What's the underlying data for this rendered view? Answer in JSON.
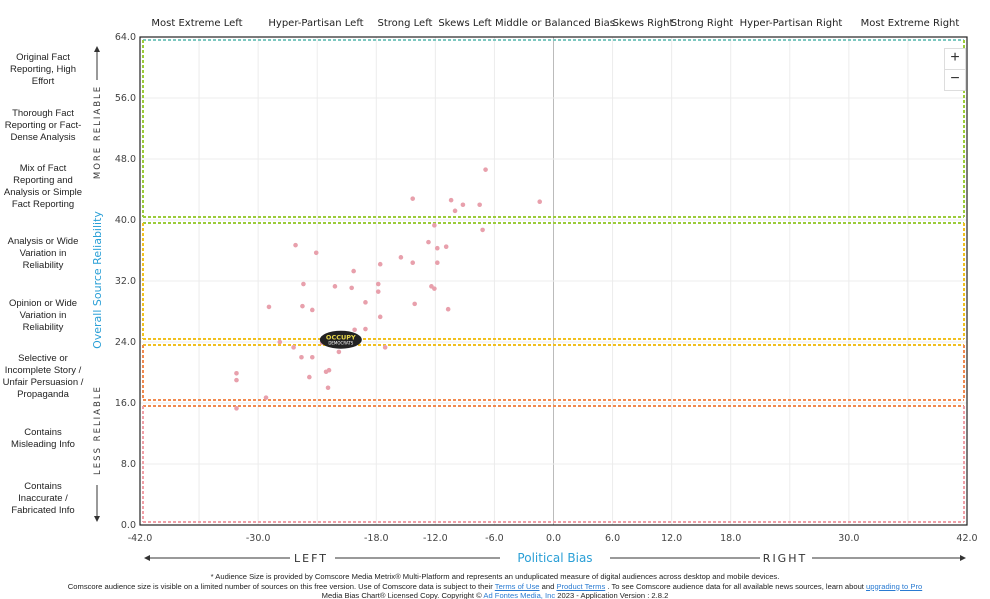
{
  "top_labels": [
    "Most Extreme Left",
    "Hyper-Partisan Left",
    "Strong Left",
    "Skews Left",
    "Middle or Balanced Bias",
    "Skews Right",
    "Strong Right",
    "Hyper-Partisan Right",
    "Most Extreme Right"
  ],
  "left_labels": [
    "Original Fact Reporting, High Effort",
    "Thorough Fact Reporting or Fact-Dense Analysis",
    "Mix of Fact Reporting and Analysis or Simple Fact Reporting",
    "Analysis or Wide Variation in Reliability",
    "Opinion or Wide Variation in Reliability",
    "Selective or Incomplete Story / Unfair Persuasion / Propaganda",
    "Contains Misleading Info",
    "Contains Inaccurate / Fabricated Info"
  ],
  "y_axis": {
    "title": "Overall Source Reliability",
    "more": "MORE RELIABLE",
    "less": "LESS RELIABLE"
  },
  "x_axis": {
    "title": "Political Bias",
    "left": "LEFT",
    "right": "RIGHT"
  },
  "zoom": {
    "plus": "+",
    "minus": "−"
  },
  "logo_text": [
    "OCCUPY",
    "DEMOCRATS"
  ],
  "footer": {
    "line1": "* Audience Size is provided by Comscore Media Metrix® Multi-Platform and represents an unduplicated measure of digital audiences across desktop and mobile devices.",
    "line2a": "Comscore audience size is visible on a limited number of sources on this free version. Use of Comscore data is subject to their",
    "terms": "Terms of Use",
    "and": "and",
    "product_terms": "Product Terms",
    "line2b": ". To see Comscore audience data for all available news sources, learn about",
    "upgrade": "upgrading to Pro",
    "line3a": "Media Bias Chart® Licensed Copy. Copyright ©",
    "adfontes": "Ad Fontes Media, Inc",
    "line3b": "2023 - Application Version : 2.8.2"
  },
  "colors": {
    "point": "#e8a0ac",
    "axis_title": "#2a9fd6",
    "band_top": "#7cc8c0",
    "band_green": "#9ccc3a",
    "band_yellow": "#f0c020",
    "band_orange": "#f08a50",
    "band_red": "#f0a0a8"
  },
  "chart_data": {
    "type": "scatter",
    "xlabel": "Political Bias",
    "ylabel": "Overall Source Reliability",
    "xlim": [
      -42,
      42
    ],
    "ylim": [
      0,
      64
    ],
    "xticks": [
      "-42.0",
      "-30.0",
      "-18.0",
      "-12.0",
      "-6.0",
      "0.0",
      "6.0",
      "12.0",
      "18.0",
      "30.0",
      "42.0"
    ],
    "xtick_values": [
      -42,
      -30,
      -18,
      -12,
      -6,
      0,
      6,
      12,
      18,
      30,
      42
    ],
    "yticks": [
      "0.0",
      "8.0",
      "16.0",
      "24.0",
      "32.0",
      "40.0",
      "48.0",
      "56.0",
      "64.0"
    ],
    "ytick_values": [
      0,
      8,
      16,
      24,
      32,
      40,
      48,
      56,
      64
    ],
    "grid": true,
    "bands": [
      [
        40,
        64
      ],
      [
        24,
        40
      ],
      [
        16,
        24
      ],
      [
        0,
        16
      ]
    ],
    "highlight": {
      "name": "Occupy Democrats",
      "x": -21.6,
      "y": 24.3
    },
    "points": [
      [
        -6.9,
        46.6
      ],
      [
        -1.4,
        42.4
      ],
      [
        -14.3,
        42.8
      ],
      [
        -10.4,
        42.6
      ],
      [
        -9.2,
        42.0
      ],
      [
        -10.0,
        41.2
      ],
      [
        -7.5,
        42.0
      ],
      [
        -12.1,
        39.3
      ],
      [
        -7.2,
        38.7
      ],
      [
        -10.9,
        36.5
      ],
      [
        -12.7,
        37.1
      ],
      [
        -11.8,
        36.3
      ],
      [
        -14.3,
        34.4
      ],
      [
        -15.5,
        35.1
      ],
      [
        -17.6,
        34.2
      ],
      [
        -11.8,
        34.4
      ],
      [
        -26.2,
        36.7
      ],
      [
        -24.1,
        35.7
      ],
      [
        -20.3,
        33.3
      ],
      [
        -25.4,
        31.6
      ],
      [
        -22.2,
        31.3
      ],
      [
        -20.5,
        31.1
      ],
      [
        -17.8,
        31.6
      ],
      [
        -17.8,
        30.6
      ],
      [
        -12.4,
        31.3
      ],
      [
        -12.1,
        31.0
      ],
      [
        -28.9,
        28.6
      ],
      [
        -25.5,
        28.7
      ],
      [
        -24.5,
        28.2
      ],
      [
        -19.1,
        29.2
      ],
      [
        -14.1,
        29.0
      ],
      [
        -10.7,
        28.3
      ],
      [
        -17.6,
        27.3
      ],
      [
        -20.2,
        25.6
      ],
      [
        -19.1,
        25.7
      ],
      [
        -23.5,
        23.9
      ],
      [
        -27.8,
        24.0
      ],
      [
        -26.4,
        23.3
      ],
      [
        -17.1,
        23.3
      ],
      [
        -21.8,
        22.7
      ],
      [
        -25.6,
        22.0
      ],
      [
        -24.5,
        22.0
      ],
      [
        -22.8,
        20.3
      ],
      [
        -23.1,
        20.1
      ],
      [
        -24.8,
        19.4
      ],
      [
        -22.9,
        18.0
      ],
      [
        -32.2,
        19.9
      ],
      [
        -32.2,
        19.0
      ],
      [
        -29.2,
        16.7
      ],
      [
        -32.2,
        15.3
      ]
    ]
  }
}
